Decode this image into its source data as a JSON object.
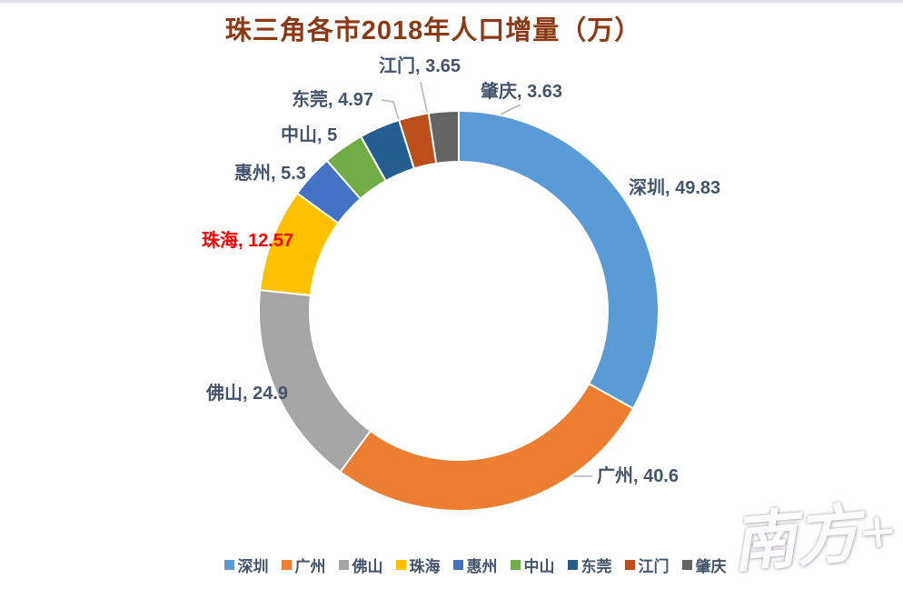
{
  "title": "珠三角各市2018年人口增量（万）",
  "watermark": "南方+",
  "styles": {
    "title_color": "#8C3A16",
    "label_color": "#44546A",
    "highlight_label_color": "#FF0000",
    "leader_line_color": "#AFB8C2",
    "separator_color": "#FFFFFF",
    "background": "#FFFFFF"
  },
  "chart_data": {
    "type": "pie",
    "subtype": "donut",
    "title": "珠三角各市2018年人口增量（万）",
    "unit": "万",
    "categories": [
      "深圳",
      "广州",
      "佛山",
      "珠海",
      "惠州",
      "中山",
      "东莞",
      "江门",
      "肇庆"
    ],
    "slugs": [
      "shenzhen",
      "guangzhou",
      "foshan",
      "zhuhai",
      "huizhou",
      "zhongshan",
      "dongguan",
      "jiangmen",
      "zhaoqing"
    ],
    "values": [
      49.83,
      40.6,
      24.9,
      12.57,
      5.3,
      5,
      4.97,
      3.65,
      3.63
    ],
    "colors": [
      "#5B9BD5",
      "#ED7D31",
      "#A5A5A5",
      "#FFC000",
      "#4472C4",
      "#70AD47",
      "#255E91",
      "#BC4E1C",
      "#636363"
    ],
    "label_format": "{category}, {value}",
    "highlighted_label": "珠海",
    "start_angle_deg": 0,
    "direction": "clockwise",
    "donut_hole": 0.75,
    "legend_position": "bottom"
  }
}
